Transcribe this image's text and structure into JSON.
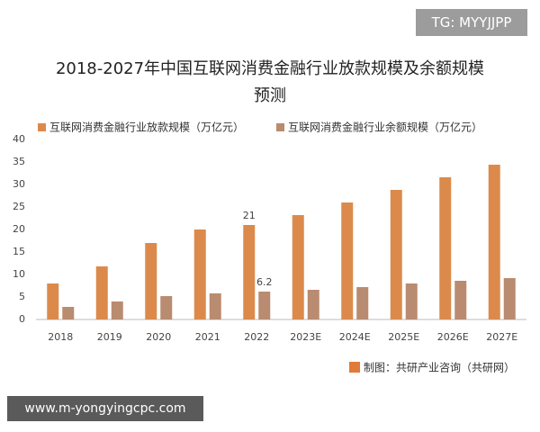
{
  "chart_data": {
    "type": "bar",
    "title": "2018-2027年中国互联网消费金融行业放款规模及余额规模预测",
    "categories": [
      "2018",
      "2019",
      "2020",
      "2021",
      "2022",
      "2023E",
      "2024E",
      "2025E",
      "2026E",
      "2027E"
    ],
    "series": [
      {
        "name": "互联网消费金融行业放款规模（万亿元）",
        "color": "#dc8a4b",
        "values": [
          8.0,
          11.8,
          17.0,
          20.0,
          21,
          23.2,
          26.0,
          28.8,
          31.6,
          34.4
        ],
        "value_labels": [
          null,
          null,
          null,
          null,
          "21",
          null,
          null,
          null,
          null,
          null
        ]
      },
      {
        "name": "互联网消费金融行业余额规模（万亿元）",
        "color": "#b98b70",
        "values": [
          2.8,
          4.0,
          5.2,
          5.8,
          6.2,
          6.6,
          7.2,
          8.0,
          8.6,
          9.2
        ],
        "value_labels": [
          null,
          null,
          null,
          null,
          "6.2",
          null,
          null,
          null,
          null,
          null
        ]
      }
    ],
    "ylim": [
      0,
      40
    ],
    "yticks": [
      0,
      5,
      10,
      15,
      20,
      25,
      30,
      35,
      40
    ],
    "grid": false,
    "source": "制图：共研产业咨询（共研网）"
  },
  "overlay": {
    "tag": "TG: MYYJJPP",
    "url": "www.m-yongyingcpc.com"
  }
}
